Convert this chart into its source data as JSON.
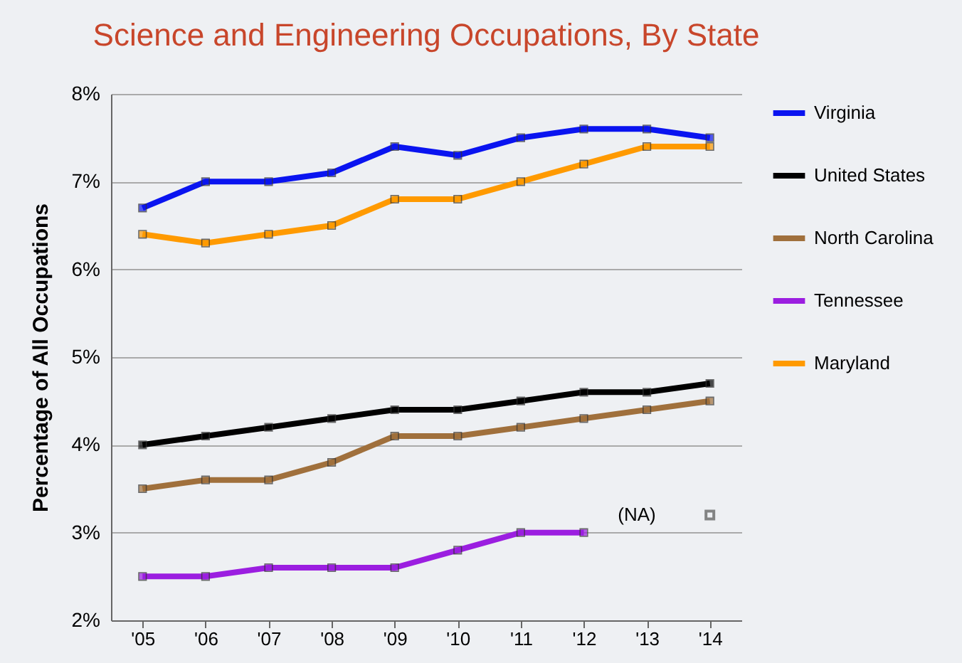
{
  "chart_data": {
    "type": "line",
    "title": "Science and Engineering Occupations, By State",
    "ylabel": "Percentage of All Occupations",
    "categories": [
      "'05",
      "'06",
      "'07",
      "'08",
      "'09",
      "'10",
      "'11",
      "'12",
      "'13",
      "'14"
    ],
    "series": [
      {
        "name": "Virginia",
        "color": "#0a14f0",
        "values": [
          6.7,
          7.0,
          7.0,
          7.1,
          7.4,
          7.3,
          7.5,
          7.6,
          7.6,
          7.5
        ]
      },
      {
        "name": "United States",
        "color": "#000000",
        "values": [
          4.0,
          4.1,
          4.2,
          4.3,
          4.4,
          4.4,
          4.5,
          4.6,
          4.6,
          4.7
        ]
      },
      {
        "name": "North Carolina",
        "color": "#a0703c",
        "values": [
          3.5,
          3.6,
          3.6,
          3.8,
          4.1,
          4.1,
          4.2,
          4.3,
          4.4,
          4.5
        ]
      },
      {
        "name": "Tennessee",
        "color": "#9b1ee0",
        "values": [
          2.5,
          2.5,
          2.6,
          2.6,
          2.6,
          2.8,
          3.0,
          3.0,
          null,
          null
        ]
      },
      {
        "name": "Maryland",
        "color": "#ff9a00",
        "values": [
          6.4,
          6.3,
          6.4,
          6.5,
          6.8,
          6.8,
          7.0,
          7.2,
          7.4,
          7.4
        ]
      }
    ],
    "annotations": [
      {
        "text": "(NA)",
        "x": "'14",
        "y": 3.2
      }
    ],
    "ylim": [
      2,
      8
    ],
    "yticks": [
      {
        "value": 2,
        "label": "2%"
      },
      {
        "value": 3,
        "label": "3%"
      },
      {
        "value": 4,
        "label": "4%"
      },
      {
        "value": 5,
        "label": "5%"
      },
      {
        "value": 6,
        "label": "6%"
      },
      {
        "value": 7,
        "label": "7%"
      },
      {
        "value": 8,
        "label": "8%"
      }
    ],
    "grid": "y",
    "legend": "right",
    "marker": "square",
    "line_style": "solid"
  }
}
